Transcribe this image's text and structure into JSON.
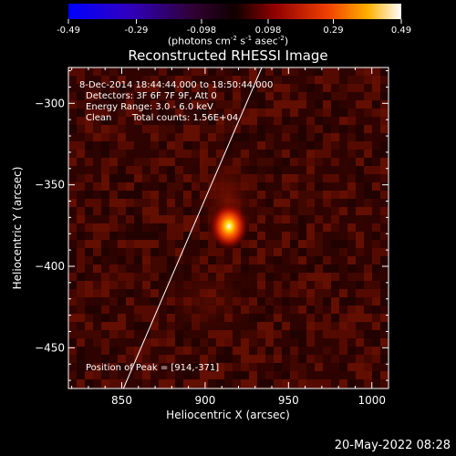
{
  "colorbar": {
    "tick_labels": [
      "-0.49",
      "-0.29",
      "-0.098",
      "0.098",
      "0.29",
      "0.49"
    ],
    "unit_parts": [
      "(photons cm",
      "-2",
      " s",
      "-1",
      " asec",
      "-2",
      ")"
    ],
    "range": [
      -0.49,
      0.49
    ]
  },
  "title": "Reconstructed RHESSI Image",
  "annotations": {
    "time_range": "8-Dec-2014 18:44:44.000 to 18:50:44.000",
    "detectors": "Detectors: 3F 6F 7F 9F, Att 0",
    "energy_range": "Energy Range: 3.0 - 6.0 keV",
    "method": "Clean",
    "total_counts": "Total counts: 1.56E+04",
    "peak_position": "Position of Peak = [914,-371]"
  },
  "date_stamp": "20-May-2022 08:28",
  "chart_data": {
    "type": "heatmap",
    "xlabel": "Heliocentric X (arcsec)",
    "ylabel": "Heliocentric Y (arcsec)",
    "xlim": [
      818,
      1010
    ],
    "ylim": [
      -475,
      -278
    ],
    "x_ticks": [
      850,
      900,
      950,
      1000
    ],
    "y_ticks": [
      -300,
      -350,
      -400,
      -450
    ],
    "peak": {
      "x": 914,
      "y": -371
    },
    "limb_line": [
      [
        851,
        -475
      ],
      [
        934,
        -278
      ]
    ],
    "colormap": [
      "#0000ff",
      "#4000a0",
      "#200020",
      "#000000",
      "#8b0000",
      "#e03000",
      "#ffa000",
      "#ffffff"
    ]
  }
}
